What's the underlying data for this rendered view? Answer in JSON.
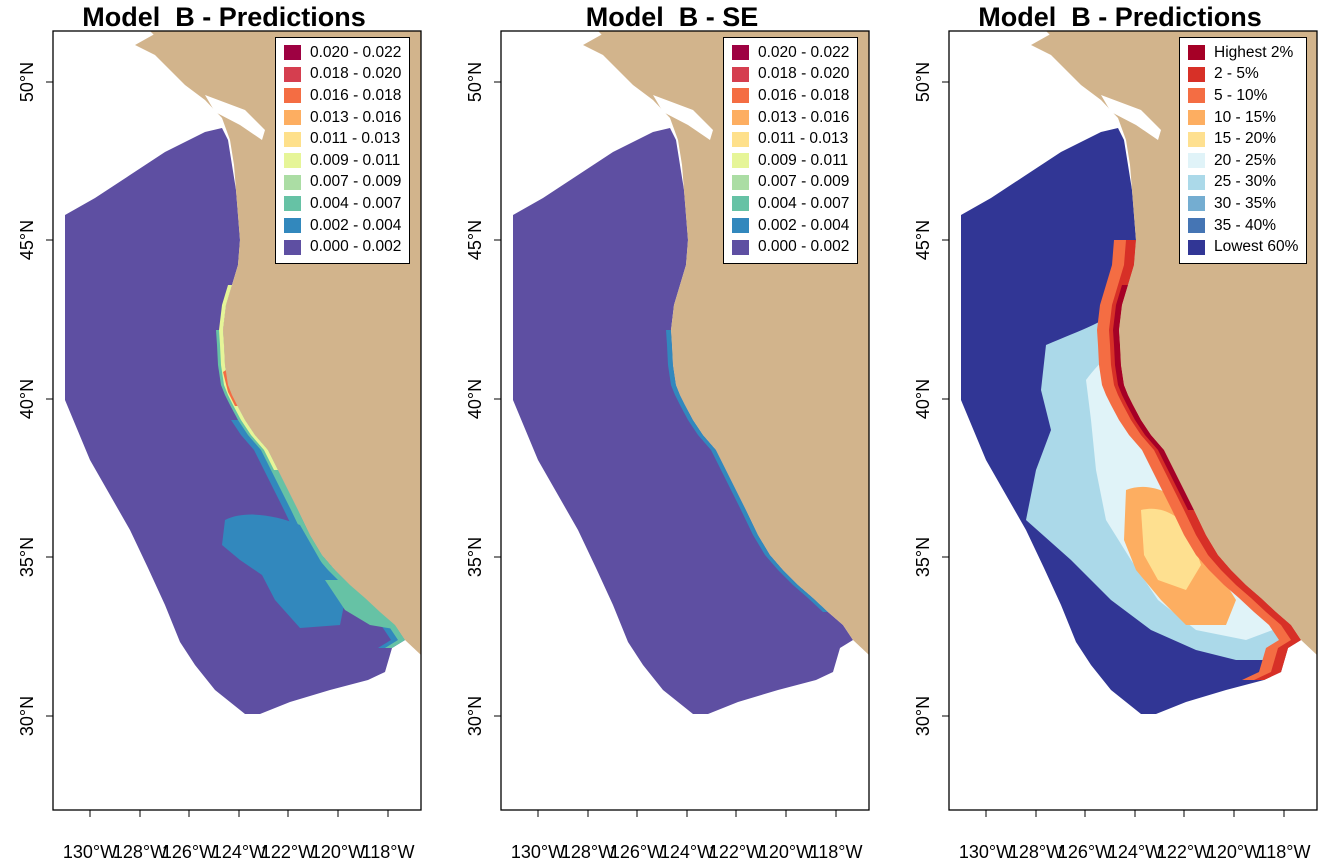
{
  "figure": {
    "land_color": "#d2b48c",
    "ocean_color": "#ffffff",
    "y_ticks": [
      "50°N",
      "45°N",
      "40°N",
      "35°N",
      "30°N"
    ],
    "x_ticks": [
      "130°W",
      "128°W",
      "126°W",
      "124°W",
      "122°W",
      "120°W",
      "118°W"
    ]
  },
  "panels": [
    {
      "title": "Model  B - Predictions",
      "type": "continuous",
      "base_color": "#5e4fa2",
      "legend": [
        {
          "label": "0.020 - 0.022",
          "color": "#9e0142"
        },
        {
          "label": "0.018 - 0.020",
          "color": "#d53e4f"
        },
        {
          "label": "0.016 - 0.018",
          "color": "#f46d43"
        },
        {
          "label": "0.013 - 0.016",
          "color": "#fdae61"
        },
        {
          "label": "0.011 - 0.013",
          "color": "#fee08b"
        },
        {
          "label": "0.009 - 0.011",
          "color": "#e6f598"
        },
        {
          "label": "0.007 - 0.009",
          "color": "#abdda4"
        },
        {
          "label": "0.004 - 0.007",
          "color": "#66c2a5"
        },
        {
          "label": "0.002 - 0.004",
          "color": "#3288bd"
        },
        {
          "label": "0.000 - 0.002",
          "color": "#5e4fa2"
        }
      ]
    },
    {
      "title": "Model  B - SE",
      "type": "se",
      "base_color": "#5e4fa2",
      "legend": [
        {
          "label": "0.020 - 0.022",
          "color": "#9e0142"
        },
        {
          "label": "0.018 - 0.020",
          "color": "#d53e4f"
        },
        {
          "label": "0.016 - 0.018",
          "color": "#f46d43"
        },
        {
          "label": "0.013 - 0.016",
          "color": "#fdae61"
        },
        {
          "label": "0.011 - 0.013",
          "color": "#fee08b"
        },
        {
          "label": "0.009 - 0.011",
          "color": "#e6f598"
        },
        {
          "label": "0.007 - 0.009",
          "color": "#abdda4"
        },
        {
          "label": "0.004 - 0.007",
          "color": "#66c2a5"
        },
        {
          "label": "0.002 - 0.004",
          "color": "#3288bd"
        },
        {
          "label": "0.000 - 0.002",
          "color": "#5e4fa2"
        }
      ]
    },
    {
      "title": "Model  B - Predictions",
      "type": "percentile",
      "base_color": "#313695",
      "legend": [
        {
          "label": "Highest 2%",
          "color": "#a50026"
        },
        {
          "label": "2 - 5%",
          "color": "#d73027"
        },
        {
          "label": "5 - 10%",
          "color": "#f46d43"
        },
        {
          "label": "10 - 15%",
          "color": "#fdae61"
        },
        {
          "label": "15 - 20%",
          "color": "#fee090"
        },
        {
          "label": "20 - 25%",
          "color": "#e0f3f8"
        },
        {
          "label": "25 - 30%",
          "color": "#abd9e9"
        },
        {
          "label": "30 - 35%",
          "color": "#74add1"
        },
        {
          "label": "35 - 40%",
          "color": "#4575b4"
        },
        {
          "label": "Lowest 60%",
          "color": "#313695"
        }
      ]
    }
  ]
}
